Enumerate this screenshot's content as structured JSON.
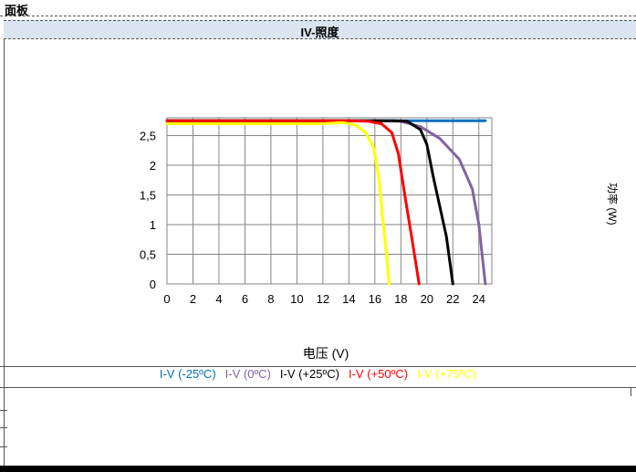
{
  "panel": {
    "title": "面板"
  },
  "chart_header": {
    "title": "IV-照度"
  },
  "side_label": "功率 (W)",
  "chart_data": {
    "type": "line",
    "title": "",
    "xlabel": "电压 (V)",
    "ylabel": "",
    "xlim": [
      0,
      25
    ],
    "ylim": [
      0,
      2.8
    ],
    "xticks": [
      0,
      2,
      4,
      6,
      8,
      10,
      12,
      14,
      16,
      18,
      20,
      22,
      24
    ],
    "xticklabels": [
      "0",
      "2",
      "4",
      "6",
      "8",
      "10",
      "12",
      "14",
      "16",
      "18",
      "20",
      "22",
      "24"
    ],
    "yticks": [
      0,
      0.5,
      1,
      1.5,
      2,
      2.5
    ],
    "yticklabels": [
      "0",
      "0,5",
      "1",
      "1,5",
      "2",
      "2,5"
    ],
    "grid": true,
    "legend_position": "bottom",
    "series": [
      {
        "name": "I-V (-25ºC)",
        "color": "#0070c0",
        "x": [
          0,
          24.5
        ],
        "y": [
          2.75,
          2.75
        ]
      },
      {
        "name": "I-V (0ºC)",
        "color": "#8064a2",
        "x": [
          0,
          15,
          16.5,
          18,
          19.5,
          21,
          22.5,
          23.5,
          24,
          24.3,
          24.5
        ],
        "y": [
          2.75,
          2.75,
          2.75,
          2.74,
          2.65,
          2.45,
          2.1,
          1.6,
          1.0,
          0.4,
          0
        ]
      },
      {
        "name": "I-V (+25ºC)",
        "color": "#000000",
        "x": [
          0,
          16,
          17.5,
          18.5,
          19.5,
          20,
          20.5,
          21.5,
          22
        ],
        "y": [
          2.75,
          2.75,
          2.75,
          2.74,
          2.6,
          2.35,
          1.8,
          0.8,
          0
        ]
      },
      {
        "name": "I-V (+50ºC)",
        "color": "#ff0000",
        "x": [
          0,
          14,
          15.5,
          16.5,
          17.3,
          17.8,
          18.3,
          18.9,
          19.4
        ],
        "y": [
          2.75,
          2.75,
          2.74,
          2.7,
          2.55,
          2.2,
          1.5,
          0.7,
          0
        ]
      },
      {
        "name": "I-V (+75ºC)",
        "color": "#ffff00",
        "x": [
          0,
          12,
          13.5,
          14.5,
          15.3,
          15.9,
          16.3,
          16.6,
          16.9,
          17.1
        ],
        "y": [
          2.7,
          2.7,
          2.72,
          2.68,
          2.55,
          2.3,
          1.8,
          1.1,
          0.5,
          0
        ]
      }
    ]
  }
}
